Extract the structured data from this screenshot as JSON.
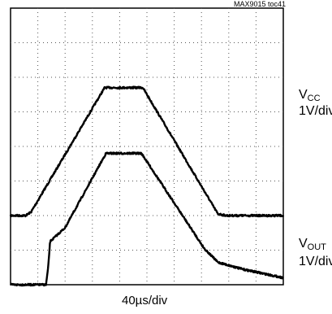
{
  "figure_tag": "MAX9015 toc41",
  "channels": [
    {
      "symbol": "V",
      "subscript": "CC",
      "scale": "1V/div"
    },
    {
      "symbol": "V",
      "subscript": "OUT",
      "scale": "1V/div"
    }
  ],
  "time_scale": "40µs/div",
  "chart_data": {
    "type": "line",
    "title": "",
    "xlabel": "40µs/div",
    "ylabel": "",
    "grid": true,
    "xlim": [
      0,
      10
    ],
    "ylim": [
      0,
      8
    ],
    "x_unit": "div",
    "y_unit": "div",
    "series": [
      {
        "name": "VCC",
        "x": [
          0.0,
          0.55,
          0.75,
          3.45,
          4.85,
          7.6,
          7.9,
          10.0
        ],
        "y": [
          2.0,
          2.0,
          2.1,
          5.7,
          5.7,
          2.05,
          2.0,
          2.0
        ]
      },
      {
        "name": "VOUT",
        "x": [
          0.0,
          1.3,
          1.38,
          1.45,
          2.0,
          3.5,
          4.8,
          7.1,
          7.6,
          8.5,
          10.0
        ],
        "y": [
          0.0,
          0.0,
          0.5,
          1.25,
          1.65,
          3.8,
          3.8,
          1.05,
          0.65,
          0.45,
          0.2
        ]
      }
    ]
  }
}
